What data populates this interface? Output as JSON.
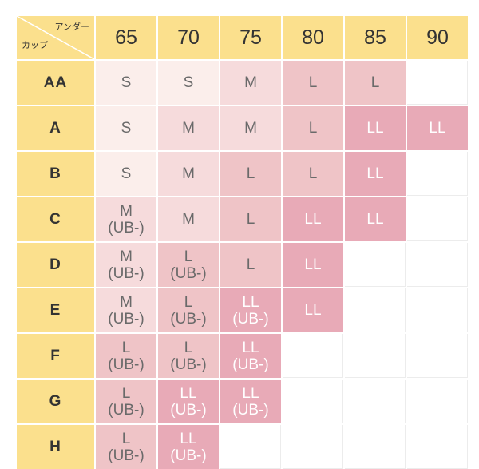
{
  "corner": {
    "band_label": "アンダー",
    "cup_label": "カップ"
  },
  "band_sizes": [
    "65",
    "70",
    "75",
    "80",
    "85",
    "90"
  ],
  "cup_sizes": [
    "AA",
    "A",
    "B",
    "C",
    "D",
    "E",
    "F",
    "G",
    "H"
  ],
  "size_table": [
    [
      {
        "size": "S",
        "note": "",
        "tone": 1
      },
      {
        "size": "S",
        "note": "",
        "tone": 1
      },
      {
        "size": "M",
        "note": "",
        "tone": 2
      },
      {
        "size": "L",
        "note": "",
        "tone": 3
      },
      {
        "size": "L",
        "note": "",
        "tone": 3
      },
      {
        "size": "",
        "note": "",
        "tone": 0
      }
    ],
    [
      {
        "size": "S",
        "note": "",
        "tone": 1
      },
      {
        "size": "M",
        "note": "",
        "tone": 2
      },
      {
        "size": "M",
        "note": "",
        "tone": 2
      },
      {
        "size": "L",
        "note": "",
        "tone": 3
      },
      {
        "size": "LL",
        "note": "",
        "tone": 4
      },
      {
        "size": "LL",
        "note": "",
        "tone": 4
      }
    ],
    [
      {
        "size": "S",
        "note": "",
        "tone": 1
      },
      {
        "size": "M",
        "note": "",
        "tone": 2
      },
      {
        "size": "L",
        "note": "",
        "tone": 3
      },
      {
        "size": "L",
        "note": "",
        "tone": 3
      },
      {
        "size": "LL",
        "note": "",
        "tone": 4
      },
      {
        "size": "",
        "note": "",
        "tone": 0
      }
    ],
    [
      {
        "size": "M",
        "note": "(UB-)",
        "tone": 2
      },
      {
        "size": "M",
        "note": "",
        "tone": 2
      },
      {
        "size": "L",
        "note": "",
        "tone": 3
      },
      {
        "size": "LL",
        "note": "",
        "tone": 4
      },
      {
        "size": "LL",
        "note": "",
        "tone": 4
      },
      {
        "size": "",
        "note": "",
        "tone": 0
      }
    ],
    [
      {
        "size": "M",
        "note": "(UB-)",
        "tone": 2
      },
      {
        "size": "L",
        "note": "(UB-)",
        "tone": 3
      },
      {
        "size": "L",
        "note": "",
        "tone": 3
      },
      {
        "size": "LL",
        "note": "",
        "tone": 4
      },
      {
        "size": "",
        "note": "",
        "tone": 0
      },
      {
        "size": "",
        "note": "",
        "tone": 0
      }
    ],
    [
      {
        "size": "M",
        "note": "(UB-)",
        "tone": 2
      },
      {
        "size": "L",
        "note": "(UB-)",
        "tone": 3
      },
      {
        "size": "LL",
        "note": "(UB-)",
        "tone": 4
      },
      {
        "size": "LL",
        "note": "",
        "tone": 4
      },
      {
        "size": "",
        "note": "",
        "tone": 0
      },
      {
        "size": "",
        "note": "",
        "tone": 0
      }
    ],
    [
      {
        "size": "L",
        "note": "(UB-)",
        "tone": 3
      },
      {
        "size": "L",
        "note": "(UB-)",
        "tone": 3
      },
      {
        "size": "LL",
        "note": "(UB-)",
        "tone": 4
      },
      {
        "size": "",
        "note": "",
        "tone": 0
      },
      {
        "size": "",
        "note": "",
        "tone": 0
      },
      {
        "size": "",
        "note": "",
        "tone": 0
      }
    ],
    [
      {
        "size": "L",
        "note": "(UB-)",
        "tone": 3
      },
      {
        "size": "LL",
        "note": "(UB-)",
        "tone": 4
      },
      {
        "size": "LL",
        "note": "(UB-)",
        "tone": 4
      },
      {
        "size": "",
        "note": "",
        "tone": 0
      },
      {
        "size": "",
        "note": "",
        "tone": 0
      },
      {
        "size": "",
        "note": "",
        "tone": 0
      }
    ],
    [
      {
        "size": "L",
        "note": "(UB-)",
        "tone": 3
      },
      {
        "size": "LL",
        "note": "(UB-)",
        "tone": 4
      },
      {
        "size": "",
        "note": "",
        "tone": 0
      },
      {
        "size": "",
        "note": "",
        "tone": 0
      },
      {
        "size": "",
        "note": "",
        "tone": 0
      },
      {
        "size": "",
        "note": "",
        "tone": 0
      }
    ]
  ],
  "tone_colors": {
    "1": "#fbeeeb",
    "2": "#f6dbdc",
    "3": "#efc4c7",
    "4": "#e8aab7"
  },
  "header_color": "#fbe08d"
}
